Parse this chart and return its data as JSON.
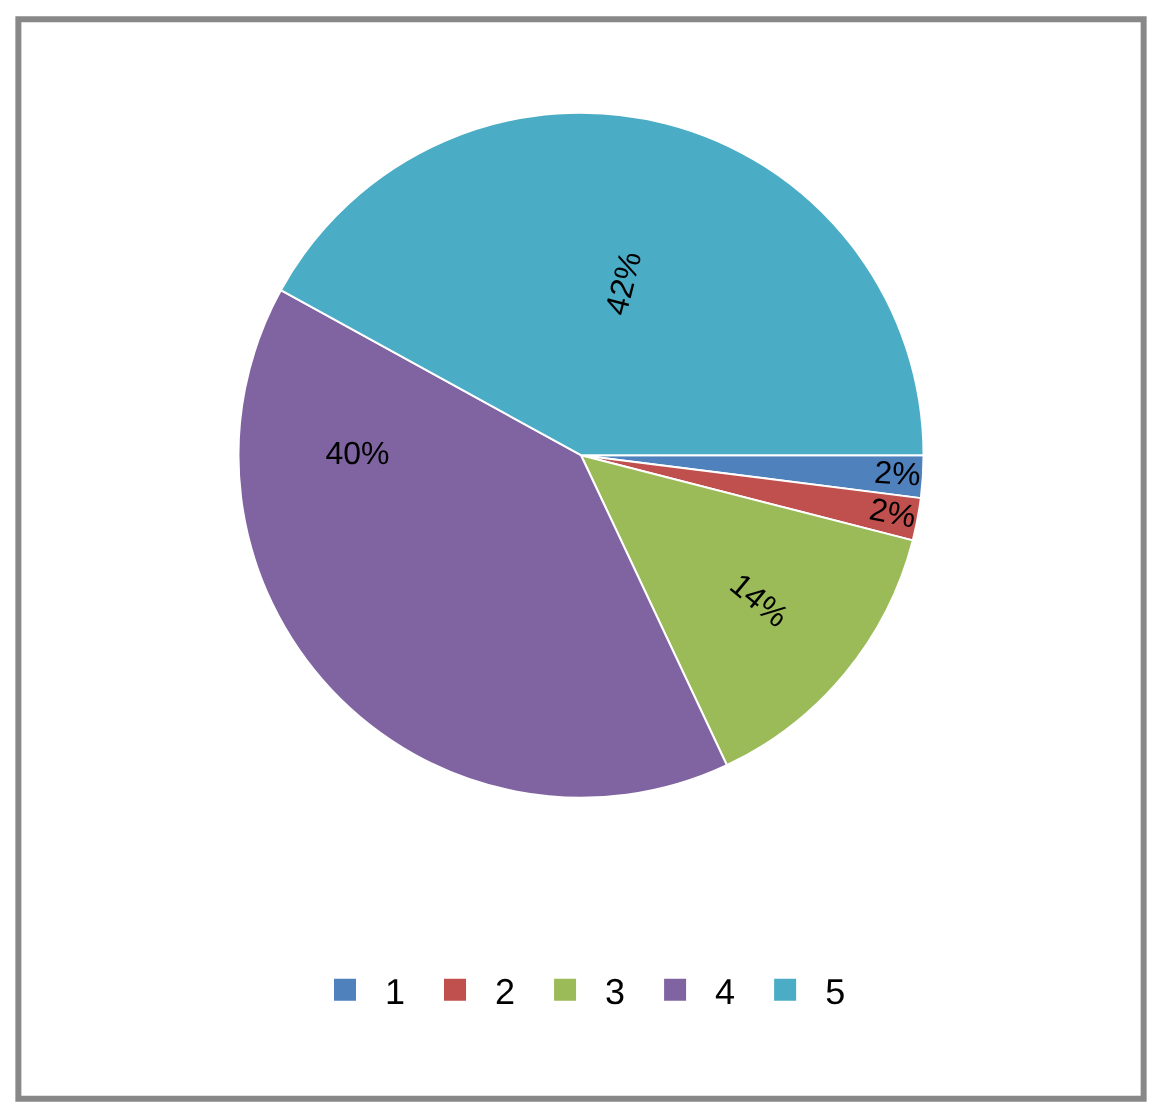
{
  "chart_data": {
    "type": "pie",
    "categories": [
      "1",
      "2",
      "3",
      "4",
      "5"
    ],
    "values": [
      2,
      2,
      14,
      40,
      42
    ],
    "colors": [
      "#4f81bd",
      "#c0504d",
      "#9bbb59",
      "#8064a2",
      "#4bacc6"
    ],
    "value_labels": [
      "2%",
      "2%",
      "14%",
      "40%",
      "42%"
    ],
    "legend": "bottom"
  }
}
